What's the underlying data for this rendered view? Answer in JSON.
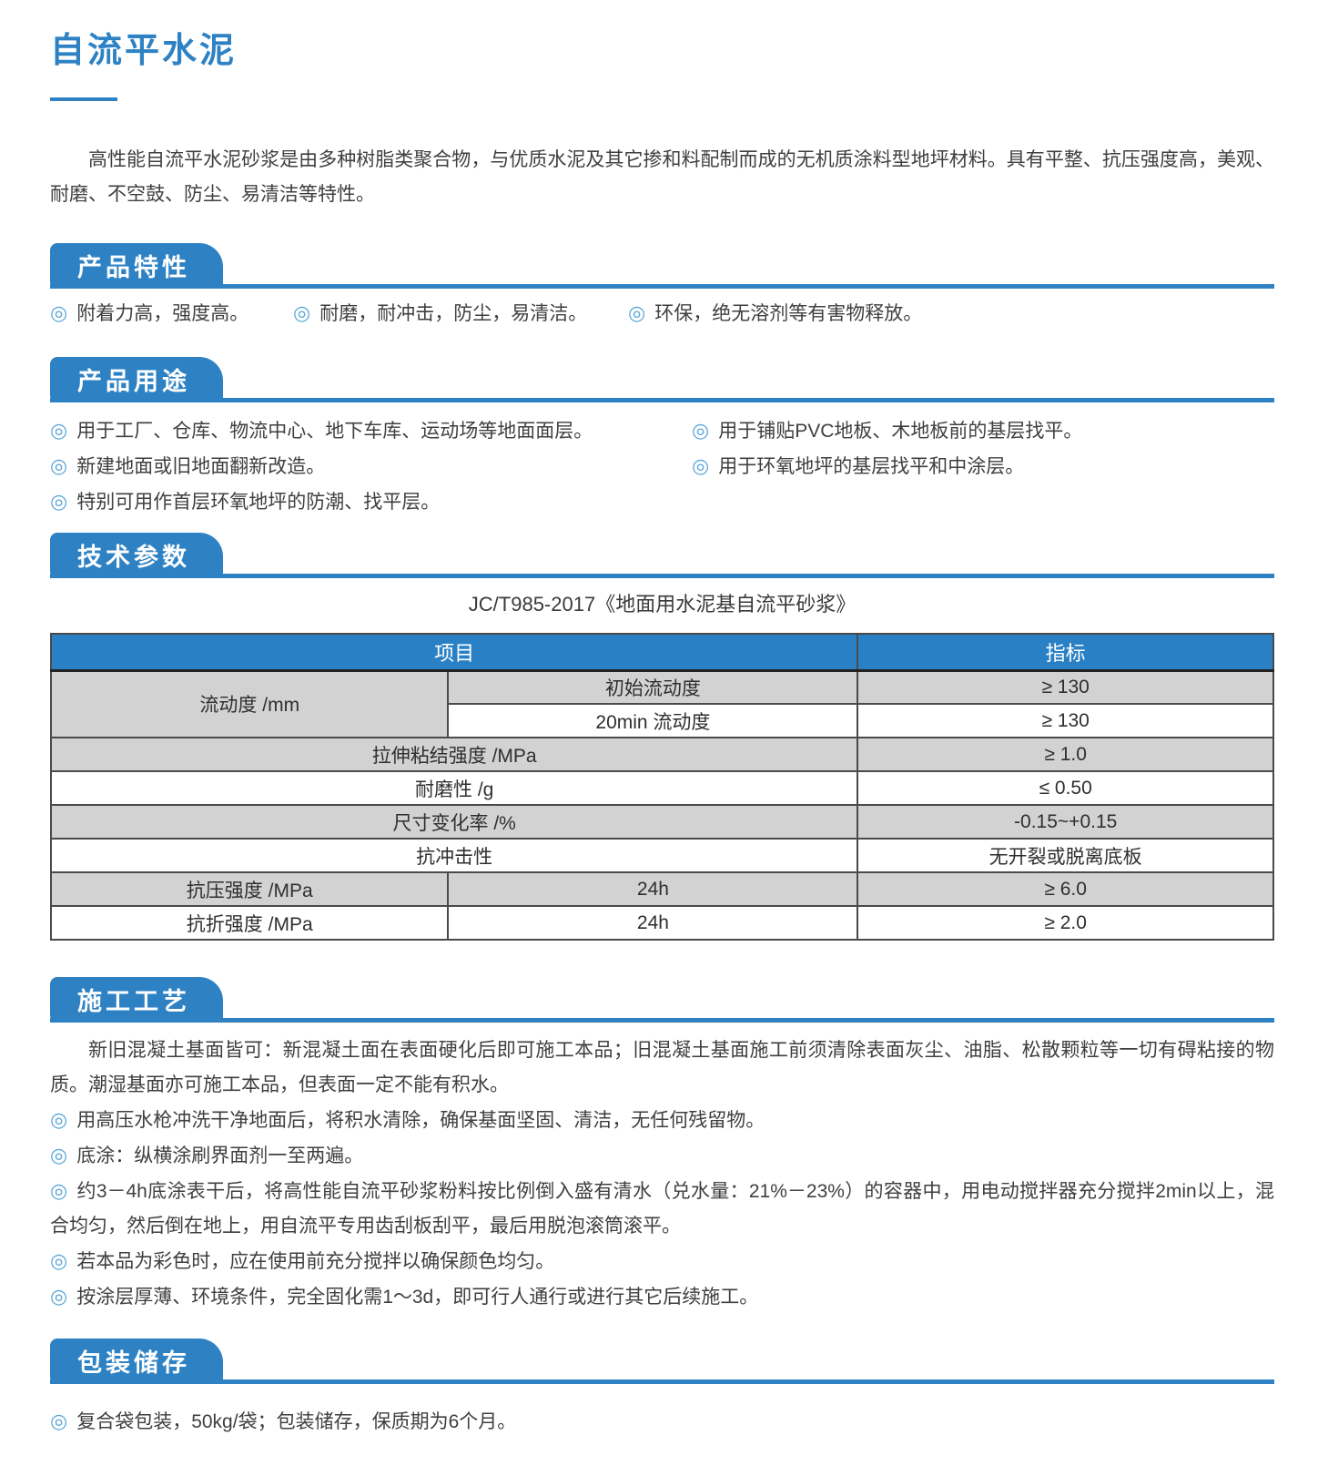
{
  "doc": {
    "title": "自流平水泥",
    "intro": "高性能自流平水泥砂浆是由多种树脂类聚合物，与优质水泥及其它掺和料配制而成的无机质涂料型地坪材料。具有平整、抗压强度高，美观、耐磨、不空鼓、防尘、易清洁等特性。"
  },
  "bullet_glyph": "◎",
  "colors": {
    "primary_blue": "#2e82c4",
    "table_header_blue": "#2a80c4",
    "row_gray": "#d2d2d2",
    "body_text": "#3f3f3f",
    "bullet_blue": "#5aa7d8",
    "table_border": "#4a4a4a"
  },
  "sections": {
    "features": {
      "heading": "产品特性",
      "items": [
        "附着力高，强度高。",
        "耐磨，耐冲击，防尘，易清洁。",
        "环保，绝无溶剂等有害物释放。"
      ]
    },
    "uses": {
      "heading": "产品用途",
      "left_items": [
        "用于工厂、仓库、物流中心、地下车库、运动场等地面面层。",
        "新建地面或旧地面翻新改造。",
        "特别可用作首层环氧地坪的防潮、找平层。"
      ],
      "right_items": [
        "用于铺贴PVC地板、木地板前的基层找平。",
        "用于环氧地坪的基层找平和中涂层。"
      ]
    },
    "specs": {
      "heading": "技术参数",
      "standard": "JC/T985-2017《地面用水泥基自流平砂浆》",
      "table": {
        "header": {
          "item": "项目",
          "index": "指标"
        },
        "rows": [
          {
            "shade": "gray",
            "cells": [
              {
                "text": "流动度 /mm",
                "rowspan": 2,
                "shade": "gray"
              },
              {
                "text": "初始流动度"
              },
              {
                "text": "≥ 130"
              }
            ]
          },
          {
            "shade": "white",
            "cells": [
              {
                "text": "20min 流动度"
              },
              {
                "text": "≥ 130"
              }
            ]
          },
          {
            "shade": "gray",
            "cells": [
              {
                "text": "拉伸粘结强度 /MPa",
                "colspan": 2
              },
              {
                "text": "≥ 1.0"
              }
            ]
          },
          {
            "shade": "white",
            "cells": [
              {
                "text": "耐磨性 /g",
                "colspan": 2
              },
              {
                "text": "≤ 0.50"
              }
            ]
          },
          {
            "shade": "gray",
            "cells": [
              {
                "text": "尺寸变化率 /%",
                "colspan": 2
              },
              {
                "text": "-0.15~+0.15"
              }
            ]
          },
          {
            "shade": "white",
            "cells": [
              {
                "text": "抗冲击性",
                "colspan": 2
              },
              {
                "text": "无开裂或脱离底板"
              }
            ]
          },
          {
            "shade": "gray",
            "cells": [
              {
                "text": "抗压强度 /MPa"
              },
              {
                "text": "24h"
              },
              {
                "text": "≥ 6.0"
              }
            ]
          },
          {
            "shade": "white",
            "cells": [
              {
                "text": "抗折强度 /MPa"
              },
              {
                "text": "24h"
              },
              {
                "text": "≥ 2.0"
              }
            ]
          }
        ]
      }
    },
    "process": {
      "heading": "施工工艺",
      "intro": "新旧混凝土基面皆可：新混凝土面在表面硬化后即可施工本品；旧混凝土基面施工前须清除表面灰尘、油脂、松散颗粒等一切有碍粘接的物质。潮湿基面亦可施工本品，但表面一定不能有积水。",
      "items": [
        "用高压水枪冲洗干净地面后，将积水清除，确保基面坚固、清洁，无任何残留物。",
        "底涂：纵横涂刷界面剂一至两遍。",
        "约3－4h底涂表干后，将高性能自流平砂浆粉料按比例倒入盛有清水（兑水量：21%－23%）的容器中，用电动搅拌器充分搅拌2min以上，混合均匀，然后倒在地上，用自流平专用齿刮板刮平，最后用脱泡滚筒滚平。",
        "若本品为彩色时，应在使用前充分搅拌以确保颜色均匀。",
        "按涂层厚薄、环境条件，完全固化需1～3d，即可行人通行或进行其它后续施工。"
      ]
    },
    "packaging": {
      "heading": "包装储存",
      "items": [
        "复合袋包装，50kg/袋；包装储存，保质期为6个月。"
      ]
    }
  }
}
